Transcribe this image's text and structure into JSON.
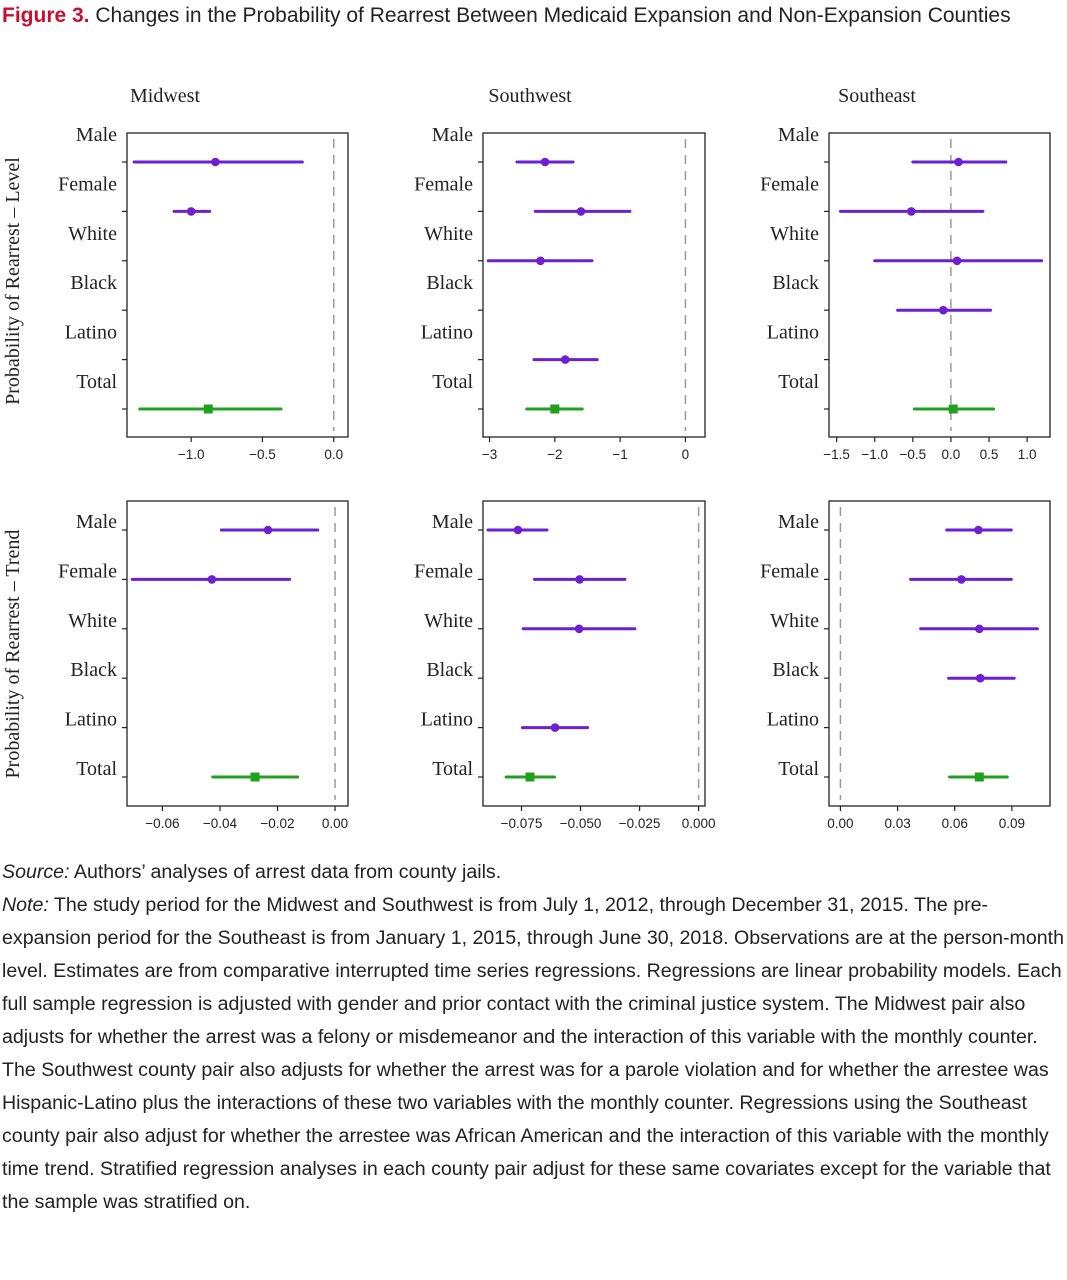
{
  "figure": {
    "label": "Figure 3.",
    "title": "Changes in the Probability of Rearrest Between Medicaid Expansion and Non-Expansion Counties"
  },
  "colors": {
    "subgroup": "#6e1fd1",
    "total": "#1fa01f",
    "reference_line": "#999999",
    "frame": "#222222"
  },
  "chart_data": {
    "type": "forest",
    "columns": [
      "Midwest",
      "Southwest",
      "Southeast"
    ],
    "rows": [
      "Probability of Rearrest – Level",
      "Probability of Rearrest – Trend"
    ],
    "categories": [
      "Male",
      "Female",
      "White",
      "Black",
      "Latino",
      "Total"
    ],
    "reference_line": 0,
    "panels": [
      {
        "row": "Probability of Rearrest – Level",
        "column": "Midwest",
        "xlim": [
          -1.45,
          0.1
        ],
        "ticks": [
          -1.0,
          -0.5,
          0.0
        ],
        "tick_labels": [
          "−1.0",
          "−0.5",
          "0.0"
        ],
        "estimates": [
          {
            "category": "Male",
            "estimate": -0.83,
            "low": -1.4,
            "high": -0.22
          },
          {
            "category": "Female",
            "estimate": -1.0,
            "low": -1.12,
            "high": -0.87
          },
          {
            "category": "Total",
            "estimate": -0.88,
            "low": -1.36,
            "high": -0.37
          }
        ]
      },
      {
        "row": "Probability of Rearrest – Level",
        "column": "Southwest",
        "xlim": [
          -3.1,
          0.3
        ],
        "ticks": [
          -3,
          -2,
          -1,
          0
        ],
        "tick_labels": [
          "−3",
          "−2",
          "−1",
          "0"
        ],
        "estimates": [
          {
            "category": "Male",
            "estimate": -2.15,
            "low": -2.58,
            "high": -1.72
          },
          {
            "category": "Female",
            "estimate": -1.6,
            "low": -2.3,
            "high": -0.85
          },
          {
            "category": "White",
            "estimate": -2.22,
            "low": -3.02,
            "high": -1.43
          },
          {
            "category": "Latino",
            "estimate": -1.84,
            "low": -2.32,
            "high": -1.35
          },
          {
            "category": "Total",
            "estimate": -2.0,
            "low": -2.43,
            "high": -1.58
          }
        ]
      },
      {
        "row": "Probability of Rearrest – Level",
        "column": "Southeast",
        "xlim": [
          -1.6,
          1.3
        ],
        "ticks": [
          -1.5,
          -1.0,
          -0.5,
          0.0,
          0.5,
          1.0
        ],
        "tick_labels": [
          "−1.5",
          "−1.0",
          "−0.5",
          "0.0",
          "0.5",
          "1.0"
        ],
        "estimates": [
          {
            "category": "Male",
            "estimate": 0.1,
            "low": -0.5,
            "high": 0.72
          },
          {
            "category": "Female",
            "estimate": -0.52,
            "low": -1.45,
            "high": 0.42
          },
          {
            "category": "White",
            "estimate": 0.08,
            "low": -1.0,
            "high": 1.19
          },
          {
            "category": "Black",
            "estimate": -0.1,
            "low": -0.7,
            "high": 0.52
          },
          {
            "category": "Total",
            "estimate": 0.03,
            "low": -0.48,
            "high": 0.56
          }
        ]
      },
      {
        "row": "Probability of Rearrest – Trend",
        "column": "Midwest",
        "xlim": [
          -0.0723,
          0.0045
        ],
        "ticks": [
          -0.06,
          -0.04,
          -0.02,
          0.0
        ],
        "tick_labels": [
          "−0.06",
          "−0.04",
          "−0.02",
          "0.00"
        ],
        "estimates": [
          {
            "category": "Male",
            "estimate": -0.0233,
            "low": -0.0395,
            "high": -0.006
          },
          {
            "category": "Female",
            "estimate": -0.0428,
            "low": -0.0705,
            "high": -0.0158
          },
          {
            "category": "Total",
            "estimate": -0.0278,
            "low": -0.0425,
            "high": -0.013
          }
        ]
      },
      {
        "row": "Probability of Rearrest – Trend",
        "column": "Southwest",
        "xlim": [
          -0.0913,
          0.0027
        ],
        "ticks": [
          -0.075,
          -0.05,
          -0.025,
          0.0
        ],
        "tick_labels": [
          "−0.075",
          "−0.050",
          "−0.025",
          "0.000"
        ],
        "estimates": [
          {
            "category": "Male",
            "estimate": -0.0765,
            "low": -0.0892,
            "high": -0.0642
          },
          {
            "category": "Female",
            "estimate": -0.0504,
            "low": -0.0695,
            "high": -0.0312
          },
          {
            "category": "White",
            "estimate": -0.0506,
            "low": -0.0743,
            "high": -0.027
          },
          {
            "category": "Latino",
            "estimate": -0.0608,
            "low": -0.0746,
            "high": -0.047
          },
          {
            "category": "Total",
            "estimate": -0.0714,
            "low": -0.0815,
            "high": -0.061
          }
        ]
      },
      {
        "row": "Probability of Rearrest – Trend",
        "column": "Southeast",
        "xlim": [
          -0.006,
          0.11
        ],
        "ticks": [
          0.0,
          0.03,
          0.06,
          0.09
        ],
        "tick_labels": [
          "0.00",
          "0.03",
          "0.06",
          "0.09"
        ],
        "estimates": [
          {
            "category": "Male",
            "estimate": 0.0724,
            "low": 0.0558,
            "high": 0.0897
          },
          {
            "category": "Female",
            "estimate": 0.0635,
            "low": 0.0368,
            "high": 0.0897
          },
          {
            "category": "White",
            "estimate": 0.0729,
            "low": 0.0421,
            "high": 0.1034
          },
          {
            "category": "Black",
            "estimate": 0.0734,
            "low": 0.0568,
            "high": 0.0912
          },
          {
            "category": "Total",
            "estimate": 0.0729,
            "low": 0.0573,
            "high": 0.0876
          }
        ]
      }
    ]
  },
  "notes": {
    "source_label": "Source:",
    "source_text": " Authors’ analyses of arrest data from county jails.",
    "note_label": "Note:",
    "note_text": " The study period for the Midwest and Southwest is from July 1, 2012, through December 31, 2015. The pre-expansion period for the Southeast is from January 1, 2015, through June 30, 2018. Observations are at the person-month level. Estimates are from comparative interrupted time series regressions. Regressions are linear probability models. Each full sample regression is adjusted with gender and prior contact with the criminal justice system. The Midwest pair also adjusts for whether the arrest was a felony or misdemeanor and the interaction of this variable with the monthly counter. The Southwest county pair also adjusts for whether the arrest was for a parole violation and for whether the arrestee was Hispanic-Latino plus the interactions of these two variables with the monthly counter. Regressions using the Southeast county pair also adjust for whether the arrestee was African American and the interaction of this variable with the monthly time trend. Stratified regression analyses in each county pair adjust for these same covariates except for the variable that the sample was stratified on."
  }
}
